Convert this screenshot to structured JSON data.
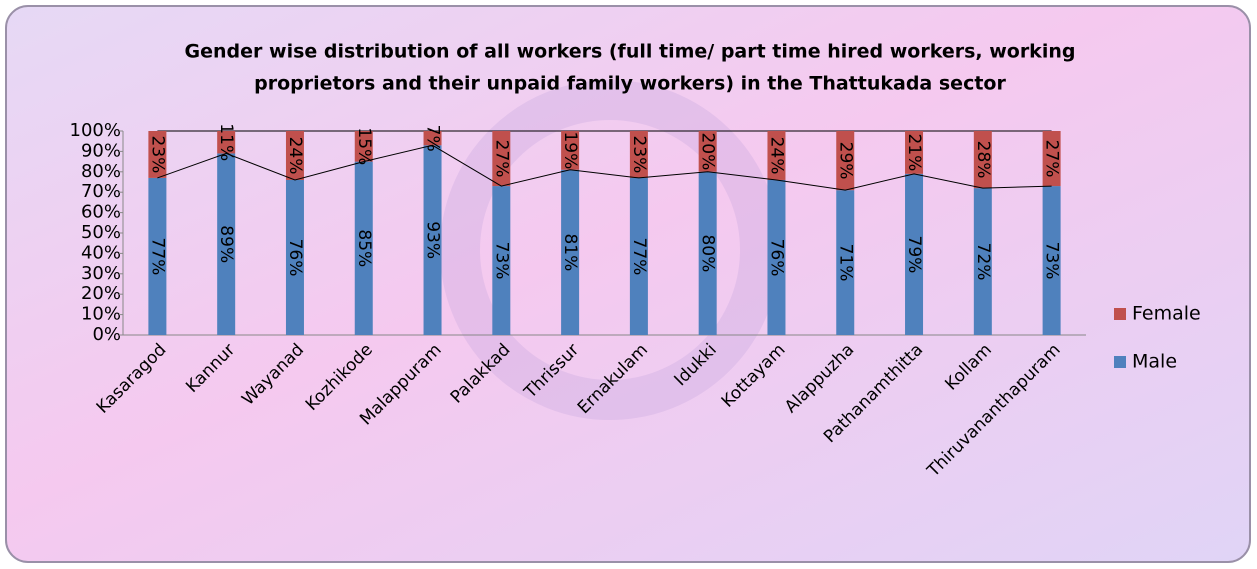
{
  "chart_data": {
    "type": "stacked_bar",
    "title": [
      "Gender wise distribution of all workers (full time/ part time hired workers, working",
      "proprietors and their unpaid family workers) in the Thattukada sector"
    ],
    "categories": [
      "Kasaragod",
      "Kannur",
      "Wayanad",
      "Kozhikode",
      "Malappuram",
      "Palakkad",
      "Thrissur",
      "Ernakulam",
      "Idukki",
      "Kottayam",
      "Alappuzha",
      "Pathanamthitta",
      "Kollam",
      "Thiruvananthapuram"
    ],
    "series": [
      {
        "name": "Male",
        "color": "#4f81bd",
        "values": [
          77,
          89,
          76,
          85,
          93,
          73,
          81,
          77,
          80,
          76,
          71,
          79,
          72,
          73
        ],
        "value_labels": [
          "77%",
          "89%",
          "76%",
          "85%",
          "93%",
          "73%",
          "81%",
          "77%",
          "80%",
          "76%",
          "71%",
          "79%",
          "72%",
          "73%"
        ]
      },
      {
        "name": "Female",
        "color": "#c0504d",
        "values": [
          23,
          11,
          24,
          15,
          7,
          27,
          19,
          23,
          20,
          24,
          29,
          21,
          28,
          27
        ],
        "value_labels": [
          "23%",
          "11%",
          "24%",
          "15%",
          "7%",
          "27%",
          "19%",
          "23%",
          "20%",
          "24%",
          "29%",
          "21%",
          "28%",
          "27%"
        ]
      }
    ],
    "ylim": [
      0,
      100
    ],
    "yticks": [
      {
        "value": 0,
        "label": "0%"
      },
      {
        "value": 10,
        "label": "10%"
      },
      {
        "value": 20,
        "label": "20%"
      },
      {
        "value": 30,
        "label": "30%"
      },
      {
        "value": 40,
        "label": "40%"
      },
      {
        "value": 50,
        "label": "50%"
      },
      {
        "value": 60,
        "label": "60%"
      },
      {
        "value": 70,
        "label": "70%"
      },
      {
        "value": 80,
        "label": "80%"
      },
      {
        "value": 90,
        "label": "90%"
      },
      {
        "value": 100,
        "label": "100%"
      }
    ],
    "legend": "right"
  }
}
